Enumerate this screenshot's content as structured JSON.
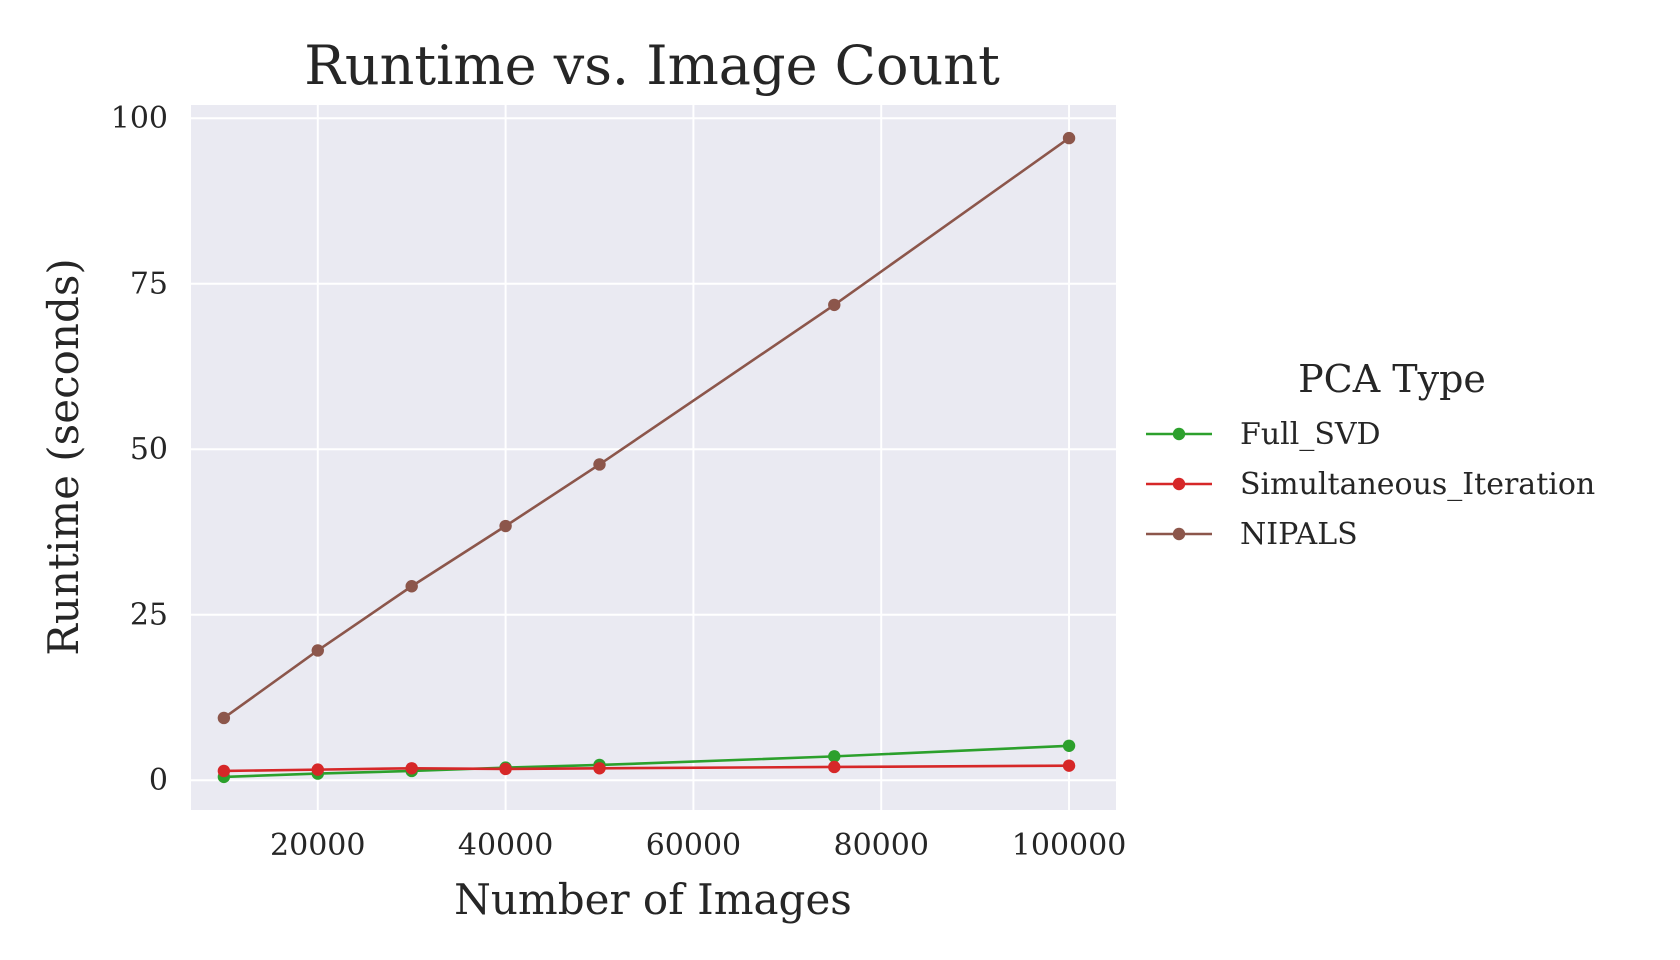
{
  "chart_data": {
    "type": "line",
    "title": "Runtime vs. Image Count",
    "xlabel": "Number of Images",
    "ylabel": "Runtime (seconds)",
    "xlim": [
      6500,
      105000
    ],
    "ylim": [
      -4.5,
      102
    ],
    "xticks": [
      20000,
      40000,
      60000,
      80000,
      100000
    ],
    "yticks": [
      0,
      25,
      50,
      75,
      100
    ],
    "grid": true,
    "legend": {
      "title": "PCA Type",
      "placement": "outside-right"
    },
    "series": [
      {
        "name": "Full_SVD",
        "color": "#2ca02c",
        "x": [
          10000,
          20000,
          30000,
          40000,
          50000,
          75000,
          100000
        ],
        "y": [
          0.5,
          1.0,
          1.4,
          1.9,
          2.3,
          3.6,
          5.2
        ]
      },
      {
        "name": "Simultaneous_Iteration",
        "color": "#d62728",
        "x": [
          10000,
          20000,
          30000,
          40000,
          50000,
          75000,
          100000
        ],
        "y": [
          1.4,
          1.6,
          1.8,
          1.7,
          1.8,
          2.0,
          2.2
        ]
      },
      {
        "name": "NIPALS",
        "color": "#8c564b",
        "x": [
          10000,
          20000,
          30000,
          40000,
          50000,
          75000,
          100000
        ],
        "y": [
          9.4,
          19.6,
          29.3,
          38.4,
          47.7,
          71.8,
          97.0
        ]
      }
    ]
  }
}
